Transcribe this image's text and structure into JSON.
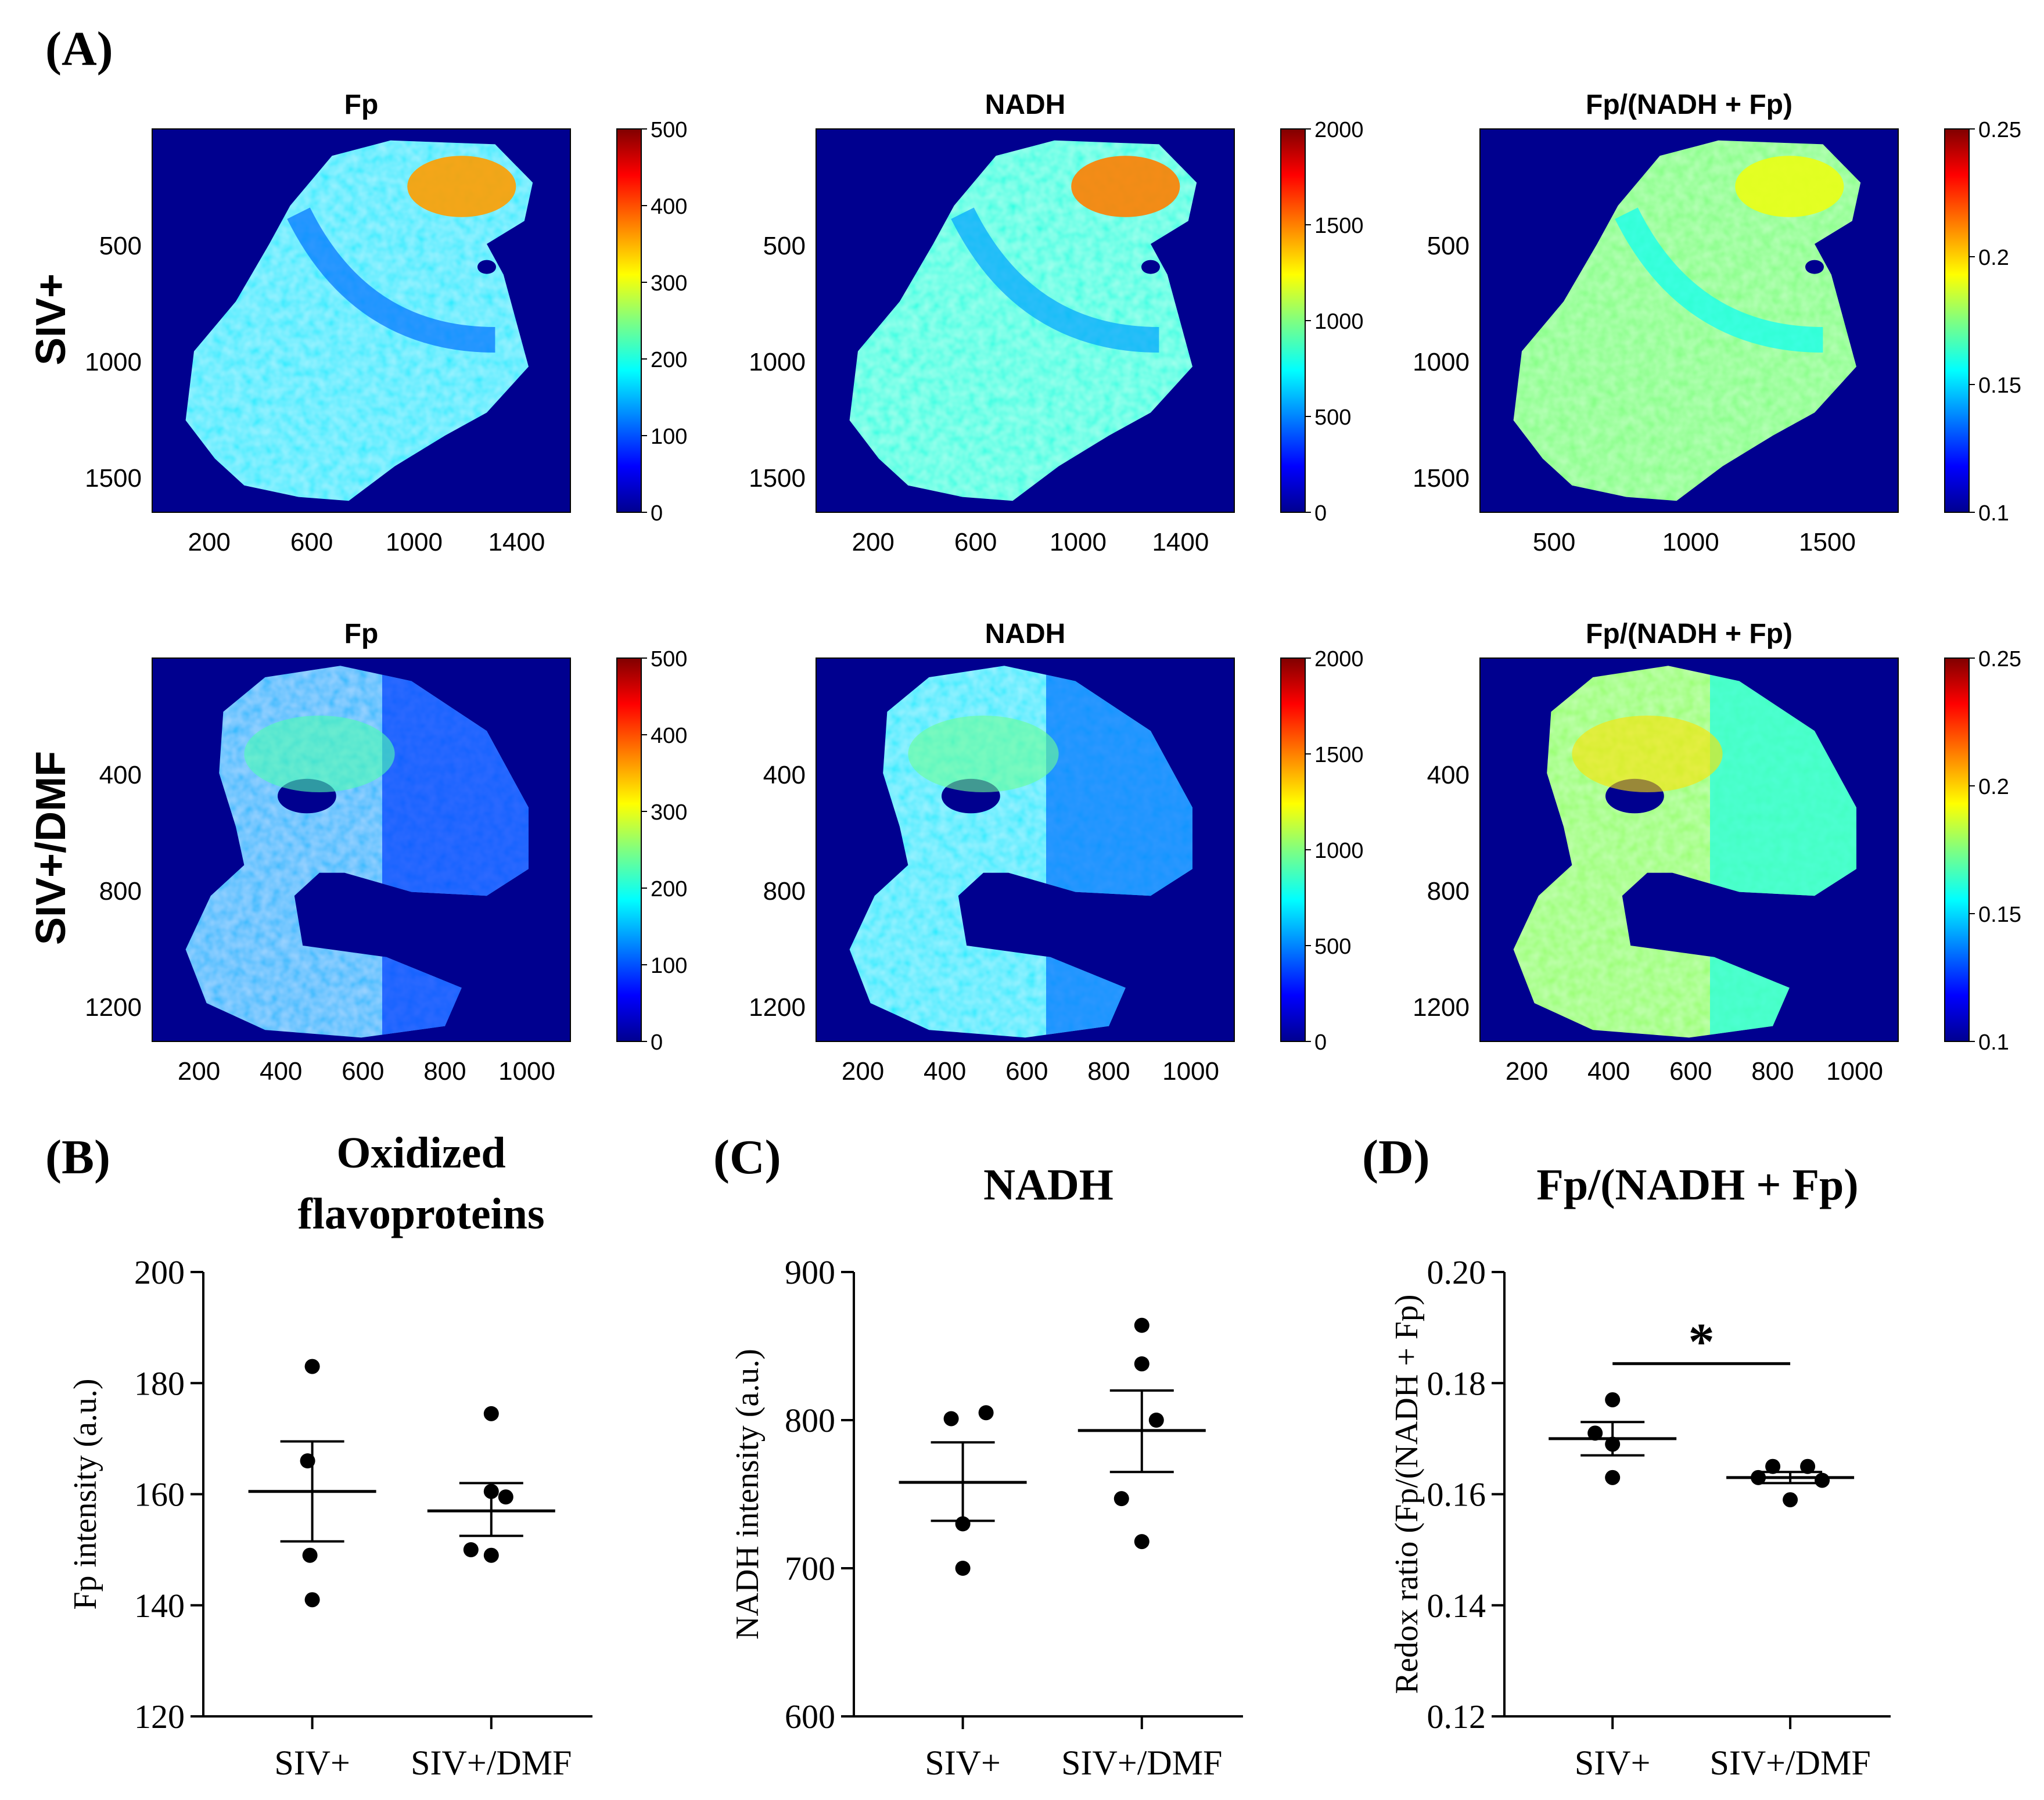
{
  "panel_labels": {
    "a": "(A)",
    "b": "(B)",
    "c": "(C)",
    "d": "(D)"
  },
  "row_labels": [
    "SIV+",
    "SIV+/DMF"
  ],
  "colors": {
    "map_background": "#00008f",
    "jet": [
      "#00008f",
      "#0000ff",
      "#0080ff",
      "#00ffff",
      "#80ff80",
      "#ffff00",
      "#ff8000",
      "#ff0000",
      "#800000"
    ],
    "ink": "#000000"
  },
  "maps": [
    {
      "id": "siv-fp",
      "title": "Fp",
      "y_ticks": [
        "500",
        "1000",
        "1500"
      ],
      "x_ticks": [
        "200",
        "600",
        "1000",
        "1400"
      ],
      "cbar_ticks": [
        "500",
        "400",
        "300",
        "200",
        "100",
        "0"
      ],
      "tissue_level": 0.35,
      "hot_level": 0.72,
      "shape": "siv"
    },
    {
      "id": "siv-nadh",
      "title": "NADH",
      "y_ticks": [
        "500",
        "1000",
        "1500"
      ],
      "x_ticks": [
        "200",
        "600",
        "1000",
        "1400"
      ],
      "cbar_ticks": [
        "2000",
        "1500",
        "1000",
        "500",
        "0"
      ],
      "tissue_level": 0.4,
      "hot_level": 0.75,
      "shape": "siv"
    },
    {
      "id": "siv-ratio",
      "title": "Fp/(NADH + Fp)",
      "y_ticks": [
        "500",
        "1000",
        "1500"
      ],
      "x_ticks": [
        "500",
        "1000",
        "1500"
      ],
      "cbar_ticks": [
        "0.25",
        "0.2",
        "0.15",
        "0.1"
      ],
      "tissue_level": 0.5,
      "hot_level": 0.6,
      "shape": "siv"
    },
    {
      "id": "dmf-fp",
      "title": "Fp",
      "y_ticks": [
        "400",
        "800",
        "1200"
      ],
      "x_ticks": [
        "200",
        "400",
        "600",
        "800",
        "1000"
      ],
      "cbar_ticks": [
        "500",
        "400",
        "300",
        "200",
        "100",
        "0"
      ],
      "tissue_level": 0.3,
      "hot_level": 0.45,
      "shape": "dmf"
    },
    {
      "id": "dmf-nadh",
      "title": "NADH",
      "y_ticks": [
        "400",
        "800",
        "1200"
      ],
      "x_ticks": [
        "200",
        "400",
        "600",
        "800",
        "1000"
      ],
      "cbar_ticks": [
        "2000",
        "1500",
        "1000",
        "500",
        "0"
      ],
      "tissue_level": 0.35,
      "hot_level": 0.48,
      "shape": "dmf"
    },
    {
      "id": "dmf-ratio",
      "title": "Fp/(NADH + Fp)",
      "y_ticks": [
        "400",
        "800",
        "1200"
      ],
      "x_ticks": [
        "200",
        "400",
        "600",
        "800",
        "1000"
      ],
      "cbar_ticks": [
        "0.25",
        "0.2",
        "0.15",
        "0.1"
      ],
      "tissue_level": 0.52,
      "hot_level": 0.65,
      "shape": "dmf"
    }
  ],
  "chart_data": [
    {
      "id": "b",
      "type": "scatter",
      "title": "Oxidized flavoproteins",
      "title_lines": [
        "Oxidized",
        "flavoproteins"
      ],
      "ylabel": "Fp intensity (a.u.)",
      "ylim": [
        120,
        200
      ],
      "yticks": [
        120,
        140,
        160,
        180,
        200
      ],
      "categories": [
        "SIV+",
        "SIV+/DMF"
      ],
      "groups": [
        {
          "name": "SIV+",
          "points": [
            183,
            166,
            149,
            141
          ],
          "mean": 160.5,
          "sem_low": 151.5,
          "sem_high": 169.5
        },
        {
          "name": "SIV+/DMF",
          "points": [
            174.5,
            160.5,
            159.5,
            150,
            149
          ],
          "mean": 157,
          "sem_low": 152.5,
          "sem_high": 162
        }
      ]
    },
    {
      "id": "c",
      "type": "scatter",
      "title": "NADH",
      "title_lines": [
        "NADH"
      ],
      "ylabel": "NADH intensity (a.u.)",
      "ylim": [
        600,
        900
      ],
      "yticks": [
        600,
        700,
        800,
        900
      ],
      "categories": [
        "SIV+",
        "SIV+/DMF"
      ],
      "groups": [
        {
          "name": "SIV+",
          "points": [
            805,
            801,
            730,
            700
          ],
          "mean": 758,
          "sem_low": 732,
          "sem_high": 785
        },
        {
          "name": "SIV+/DMF",
          "points": [
            864,
            838,
            800,
            747,
            718
          ],
          "mean": 793,
          "sem_low": 765,
          "sem_high": 820
        }
      ]
    },
    {
      "id": "d",
      "type": "scatter",
      "title": "Fp/(NADH + Fp)",
      "title_lines": [
        "Fp/(NADH + Fp)"
      ],
      "ylabel": "Redox ratio (Fp/(NADH + Fp)",
      "ylim": [
        0.12,
        0.2
      ],
      "yticks": [
        "0.12",
        "0.14",
        "0.16",
        "0.18",
        "0.20"
      ],
      "categories": [
        "SIV+",
        "SIV+/DMF"
      ],
      "groups": [
        {
          "name": "SIV+",
          "points": [
            0.177,
            0.171,
            0.169,
            0.163
          ],
          "mean": 0.17,
          "sem_low": 0.167,
          "sem_high": 0.173
        },
        {
          "name": "SIV+/DMF",
          "points": [
            0.165,
            0.165,
            0.163,
            0.1625,
            0.159
          ],
          "mean": 0.163,
          "sem_low": 0.162,
          "sem_high": 0.164
        }
      ],
      "significance": "*"
    }
  ]
}
